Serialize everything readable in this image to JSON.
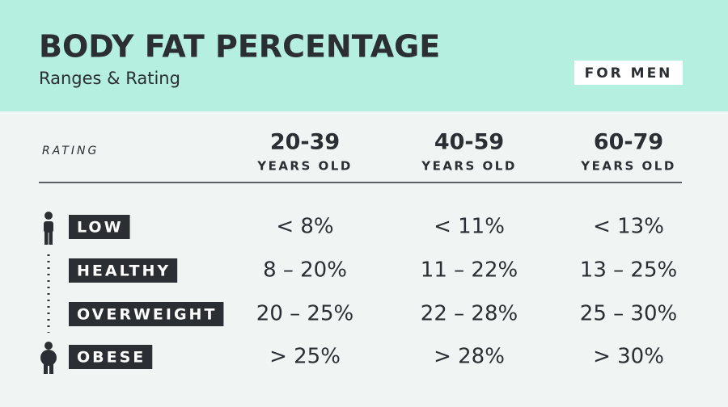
{
  "header": {
    "title": "BODY FAT PERCENTAGE",
    "subtitle": "Ranges & Rating",
    "badge": "FOR MEN"
  },
  "table": {
    "rating_label": "RATING",
    "columns": [
      {
        "age": "20-39",
        "unit": "YEARS OLD"
      },
      {
        "age": "40-59",
        "unit": "YEARS OLD"
      },
      {
        "age": "60-79",
        "unit": "YEARS OLD"
      }
    ],
    "rows": [
      {
        "rating": "LOW",
        "values": [
          "< 8%",
          "< 11%",
          "< 13%"
        ]
      },
      {
        "rating": "HEALTHY",
        "values": [
          "8 – 20%",
          "11 – 22%",
          "13 – 25%"
        ]
      },
      {
        "rating": "OVERWEIGHT",
        "values": [
          "20 – 25%",
          "22 – 28%",
          "25 – 30%"
        ]
      },
      {
        "rating": "OBESE",
        "values": [
          "> 25%",
          "> 28%",
          "> 30%"
        ]
      }
    ]
  }
}
